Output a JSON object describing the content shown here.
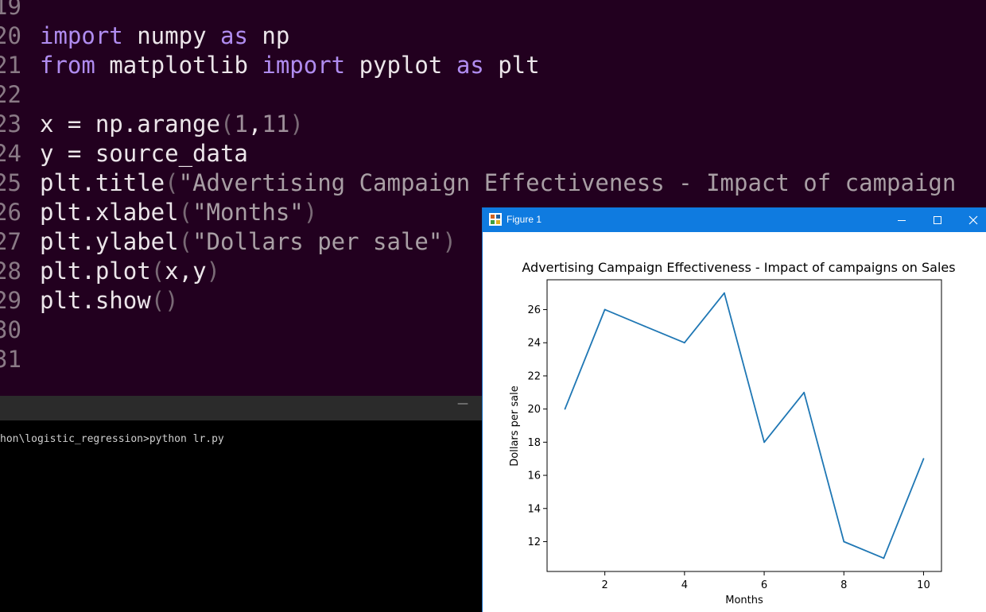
{
  "editor": {
    "lines": [
      {
        "num": "19",
        "tokens": []
      },
      {
        "num": "20",
        "tokens": [
          [
            "kw",
            "import"
          ],
          [
            "id",
            " numpy "
          ],
          [
            "kw",
            "as"
          ],
          [
            "id",
            " np"
          ]
        ]
      },
      {
        "num": "21",
        "tokens": [
          [
            "kw",
            "from"
          ],
          [
            "id",
            " matplotlib "
          ],
          [
            "kw",
            "import"
          ],
          [
            "id",
            " pyplot "
          ],
          [
            "kw",
            "as"
          ],
          [
            "id",
            " plt"
          ]
        ]
      },
      {
        "num": "22",
        "tokens": []
      },
      {
        "num": "23",
        "tokens": [
          [
            "id",
            "x = np.arange"
          ],
          [
            "paren",
            "("
          ],
          [
            "num",
            "1"
          ],
          [
            "id",
            ","
          ],
          [
            "num",
            "11"
          ],
          [
            "paren",
            ")"
          ]
        ]
      },
      {
        "num": "24",
        "tokens": [
          [
            "id",
            "y = source_data"
          ]
        ]
      },
      {
        "num": "25",
        "tokens": [
          [
            "id",
            "plt.title"
          ],
          [
            "paren",
            "("
          ],
          [
            "str",
            "\"Advertising Campaign Effectiveness - Impact of campaign"
          ]
        ]
      },
      {
        "num": "26",
        "tokens": [
          [
            "id",
            "plt.xlabel"
          ],
          [
            "paren",
            "("
          ],
          [
            "str",
            "\"Months\""
          ],
          [
            "paren",
            ")"
          ]
        ]
      },
      {
        "num": "27",
        "tokens": [
          [
            "id",
            "plt.ylabel"
          ],
          [
            "paren",
            "("
          ],
          [
            "str",
            "\"Dollars per sale\""
          ],
          [
            "paren",
            ")"
          ]
        ]
      },
      {
        "num": "28",
        "tokens": [
          [
            "id",
            "plt.plot"
          ],
          [
            "paren",
            "("
          ],
          [
            "id",
            "x,y"
          ],
          [
            "paren",
            ")"
          ]
        ]
      },
      {
        "num": "29",
        "tokens": [
          [
            "id",
            "plt.show"
          ],
          [
            "paren",
            "()"
          ]
        ]
      },
      {
        "num": "30",
        "tokens": []
      },
      {
        "num": "31",
        "tokens": []
      }
    ]
  },
  "terminal": {
    "minimize_label": "—",
    "command_line": "hon\\logistic_regression>python lr.py"
  },
  "figure_window": {
    "title": "Figure 1",
    "minimize_icon": "minimize-icon",
    "maximize_icon": "maximize-icon",
    "close_icon": "close-icon",
    "titlebar_color": "#0f7be0"
  },
  "chart_data": {
    "type": "line",
    "title": "Advertising Campaign Effectiveness - Impact of campaigns on Sales",
    "xlabel": "Months",
    "ylabel": "Dollars per sale",
    "x": [
      1,
      2,
      3,
      4,
      5,
      6,
      7,
      8,
      9,
      10
    ],
    "y": [
      20,
      26,
      25,
      24,
      27,
      18,
      21,
      12,
      11,
      17
    ],
    "xlim": [
      0.55,
      10.45
    ],
    "ylim": [
      10.2,
      27.8
    ],
    "xticks": [
      2,
      4,
      6,
      8,
      10
    ],
    "yticks": [
      12,
      14,
      16,
      18,
      20,
      22,
      24,
      26
    ],
    "line_color": "#1f77b4",
    "grid": false
  }
}
